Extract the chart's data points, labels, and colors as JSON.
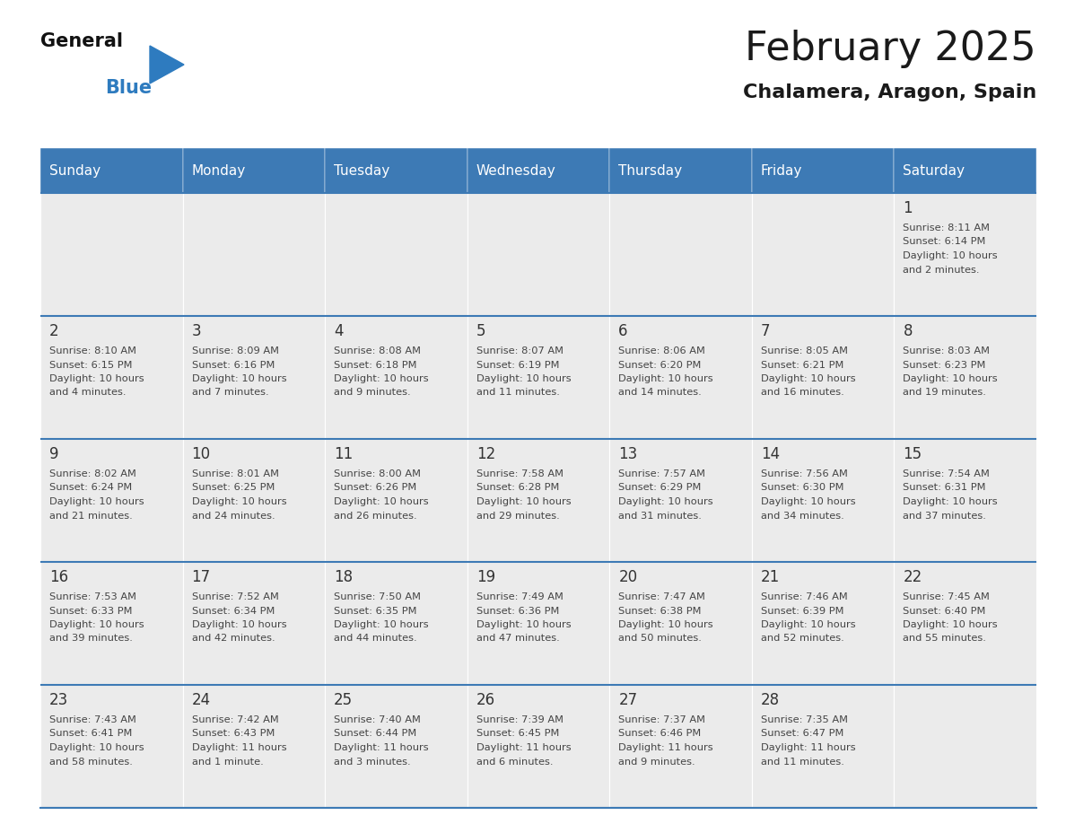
{
  "title": "February 2025",
  "subtitle": "Chalamera, Aragon, Spain",
  "header_color": "#3d7ab5",
  "header_text_color": "#ffffff",
  "day_names": [
    "Sunday",
    "Monday",
    "Tuesday",
    "Wednesday",
    "Thursday",
    "Friday",
    "Saturday"
  ],
  "background_color": "#ffffff",
  "cell_bg_even": "#ebebeb",
  "cell_bg_odd": "#f5f5f5",
  "divider_color": "#3d7ab5",
  "text_color": "#444444",
  "number_color": "#333333",
  "logo_black": "#111111",
  "logo_blue": "#2e7bbf",
  "logo_triangle": "#2e7bbf",
  "days": [
    {
      "day": 1,
      "col": 6,
      "row": 0,
      "sunrise": "8:11 AM",
      "sunset": "6:14 PM",
      "daylight_hours": 10,
      "daylight_minutes": 2
    },
    {
      "day": 2,
      "col": 0,
      "row": 1,
      "sunrise": "8:10 AM",
      "sunset": "6:15 PM",
      "daylight_hours": 10,
      "daylight_minutes": 4
    },
    {
      "day": 3,
      "col": 1,
      "row": 1,
      "sunrise": "8:09 AM",
      "sunset": "6:16 PM",
      "daylight_hours": 10,
      "daylight_minutes": 7
    },
    {
      "day": 4,
      "col": 2,
      "row": 1,
      "sunrise": "8:08 AM",
      "sunset": "6:18 PM",
      "daylight_hours": 10,
      "daylight_minutes": 9
    },
    {
      "day": 5,
      "col": 3,
      "row": 1,
      "sunrise": "8:07 AM",
      "sunset": "6:19 PM",
      "daylight_hours": 10,
      "daylight_minutes": 11
    },
    {
      "day": 6,
      "col": 4,
      "row": 1,
      "sunrise": "8:06 AM",
      "sunset": "6:20 PM",
      "daylight_hours": 10,
      "daylight_minutes": 14
    },
    {
      "day": 7,
      "col": 5,
      "row": 1,
      "sunrise": "8:05 AM",
      "sunset": "6:21 PM",
      "daylight_hours": 10,
      "daylight_minutes": 16
    },
    {
      "day": 8,
      "col": 6,
      "row": 1,
      "sunrise": "8:03 AM",
      "sunset": "6:23 PM",
      "daylight_hours": 10,
      "daylight_minutes": 19
    },
    {
      "day": 9,
      "col": 0,
      "row": 2,
      "sunrise": "8:02 AM",
      "sunset": "6:24 PM",
      "daylight_hours": 10,
      "daylight_minutes": 21
    },
    {
      "day": 10,
      "col": 1,
      "row": 2,
      "sunrise": "8:01 AM",
      "sunset": "6:25 PM",
      "daylight_hours": 10,
      "daylight_minutes": 24
    },
    {
      "day": 11,
      "col": 2,
      "row": 2,
      "sunrise": "8:00 AM",
      "sunset": "6:26 PM",
      "daylight_hours": 10,
      "daylight_minutes": 26
    },
    {
      "day": 12,
      "col": 3,
      "row": 2,
      "sunrise": "7:58 AM",
      "sunset": "6:28 PM",
      "daylight_hours": 10,
      "daylight_minutes": 29
    },
    {
      "day": 13,
      "col": 4,
      "row": 2,
      "sunrise": "7:57 AM",
      "sunset": "6:29 PM",
      "daylight_hours": 10,
      "daylight_minutes": 31
    },
    {
      "day": 14,
      "col": 5,
      "row": 2,
      "sunrise": "7:56 AM",
      "sunset": "6:30 PM",
      "daylight_hours": 10,
      "daylight_minutes": 34
    },
    {
      "day": 15,
      "col": 6,
      "row": 2,
      "sunrise": "7:54 AM",
      "sunset": "6:31 PM",
      "daylight_hours": 10,
      "daylight_minutes": 37
    },
    {
      "day": 16,
      "col": 0,
      "row": 3,
      "sunrise": "7:53 AM",
      "sunset": "6:33 PM",
      "daylight_hours": 10,
      "daylight_minutes": 39
    },
    {
      "day": 17,
      "col": 1,
      "row": 3,
      "sunrise": "7:52 AM",
      "sunset": "6:34 PM",
      "daylight_hours": 10,
      "daylight_minutes": 42
    },
    {
      "day": 18,
      "col": 2,
      "row": 3,
      "sunrise": "7:50 AM",
      "sunset": "6:35 PM",
      "daylight_hours": 10,
      "daylight_minutes": 44
    },
    {
      "day": 19,
      "col": 3,
      "row": 3,
      "sunrise": "7:49 AM",
      "sunset": "6:36 PM",
      "daylight_hours": 10,
      "daylight_minutes": 47
    },
    {
      "day": 20,
      "col": 4,
      "row": 3,
      "sunrise": "7:47 AM",
      "sunset": "6:38 PM",
      "daylight_hours": 10,
      "daylight_minutes": 50
    },
    {
      "day": 21,
      "col": 5,
      "row": 3,
      "sunrise": "7:46 AM",
      "sunset": "6:39 PM",
      "daylight_hours": 10,
      "daylight_minutes": 52
    },
    {
      "day": 22,
      "col": 6,
      "row": 3,
      "sunrise": "7:45 AM",
      "sunset": "6:40 PM",
      "daylight_hours": 10,
      "daylight_minutes": 55
    },
    {
      "day": 23,
      "col": 0,
      "row": 4,
      "sunrise": "7:43 AM",
      "sunset": "6:41 PM",
      "daylight_hours": 10,
      "daylight_minutes": 58
    },
    {
      "day": 24,
      "col": 1,
      "row": 4,
      "sunrise": "7:42 AM",
      "sunset": "6:43 PM",
      "daylight_hours": 11,
      "daylight_minutes": 1
    },
    {
      "day": 25,
      "col": 2,
      "row": 4,
      "sunrise": "7:40 AM",
      "sunset": "6:44 PM",
      "daylight_hours": 11,
      "daylight_minutes": 3
    },
    {
      "day": 26,
      "col": 3,
      "row": 4,
      "sunrise": "7:39 AM",
      "sunset": "6:45 PM",
      "daylight_hours": 11,
      "daylight_minutes": 6
    },
    {
      "day": 27,
      "col": 4,
      "row": 4,
      "sunrise": "7:37 AM",
      "sunset": "6:46 PM",
      "daylight_hours": 11,
      "daylight_minutes": 9
    },
    {
      "day": 28,
      "col": 5,
      "row": 4,
      "sunrise": "7:35 AM",
      "sunset": "6:47 PM",
      "daylight_hours": 11,
      "daylight_minutes": 11
    }
  ]
}
